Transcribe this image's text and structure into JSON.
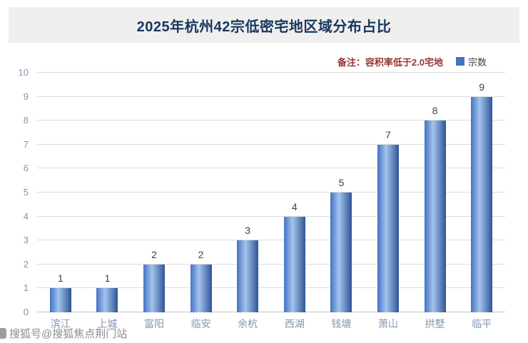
{
  "title": "2025年杭州42宗低密宅地区域分布占比",
  "note": "备注：容积率低于2.0宅地",
  "legend": {
    "label": "宗数"
  },
  "watermark": "搜狐号@搜狐焦点荆门站",
  "colors": {
    "title_text": "#17375e",
    "title_bg": "#efefef",
    "note_text": "#963634",
    "axis_text": "#8496b0",
    "data_label": "#404040",
    "grid": "#dcdcdc",
    "bar_main": "#4472c4",
    "bar_light": "#a3c4ec",
    "bar_dark": "#2f5597",
    "watermark": "#8c8c8c"
  },
  "chart_data": {
    "type": "bar",
    "title": "2025年杭州42宗低密宅地区域分布占比",
    "categories": [
      "滨江",
      "上城",
      "富阳",
      "临安",
      "余杭",
      "西湖",
      "钱塘",
      "萧山",
      "拱墅",
      "临平"
    ],
    "values": [
      1,
      1,
      2,
      2,
      3,
      4,
      5,
      7,
      8,
      9
    ],
    "series_name": "宗数",
    "note": "备注：容积率低于2.0宅地",
    "xlabel": "",
    "ylabel": "",
    "ylim": [
      0,
      10
    ],
    "ytick_step": 1,
    "grid": true,
    "legend_position": "top-right"
  }
}
